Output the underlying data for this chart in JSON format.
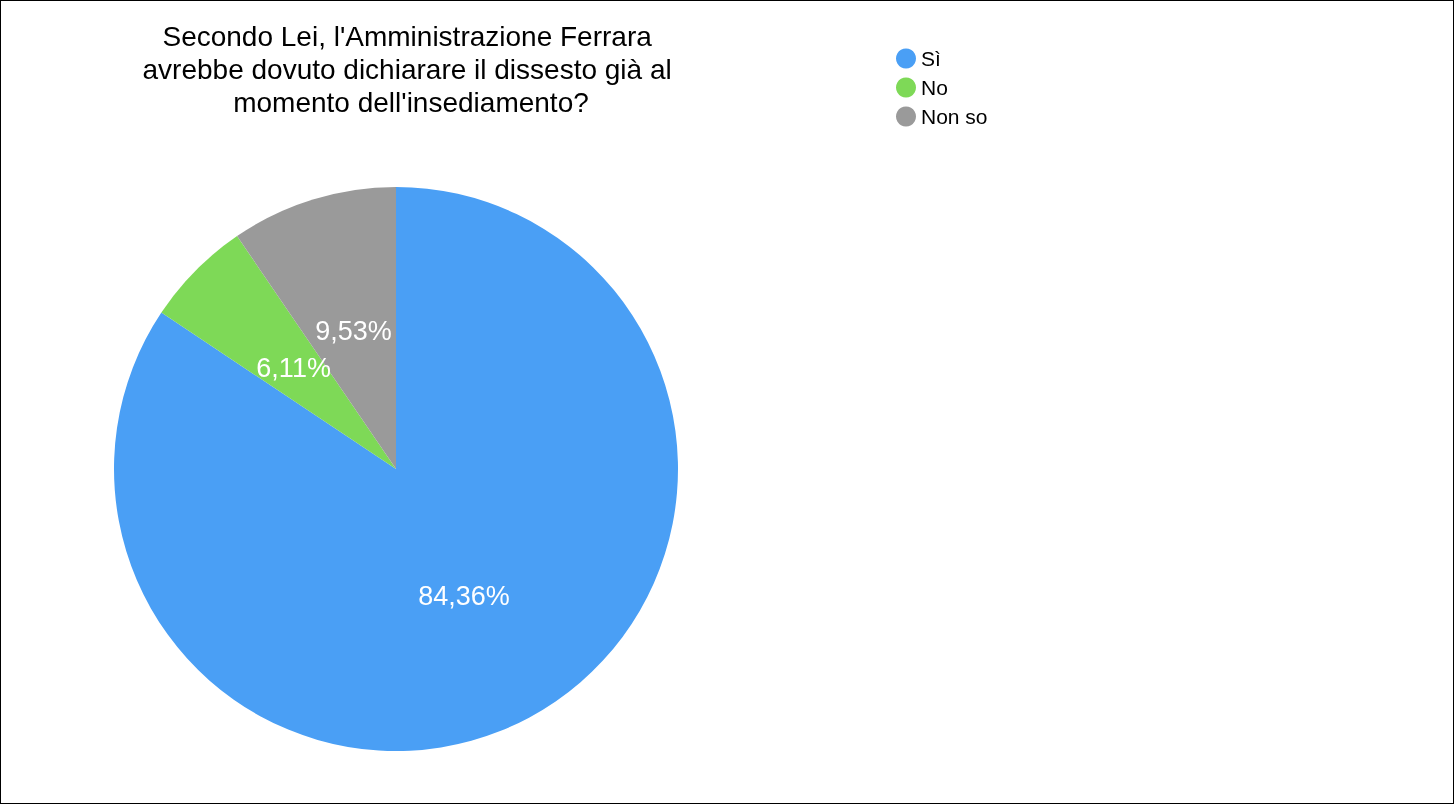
{
  "chart_data": {
    "type": "pie",
    "title": "Secondo Lei, l'Amministrazione Ferrara avrebbe dovuto dichiarare il dissesto già al momento dell'insediamento?",
    "categories": [
      "Sì",
      "No",
      "Non so"
    ],
    "values": [
      84.36,
      6.11,
      9.53
    ],
    "colors": [
      "#4a9ff5",
      "#7ed957",
      "#9a9a9a"
    ],
    "value_labels": [
      "84,36%",
      "6,11%",
      "9,53%"
    ],
    "legend": "top right"
  }
}
